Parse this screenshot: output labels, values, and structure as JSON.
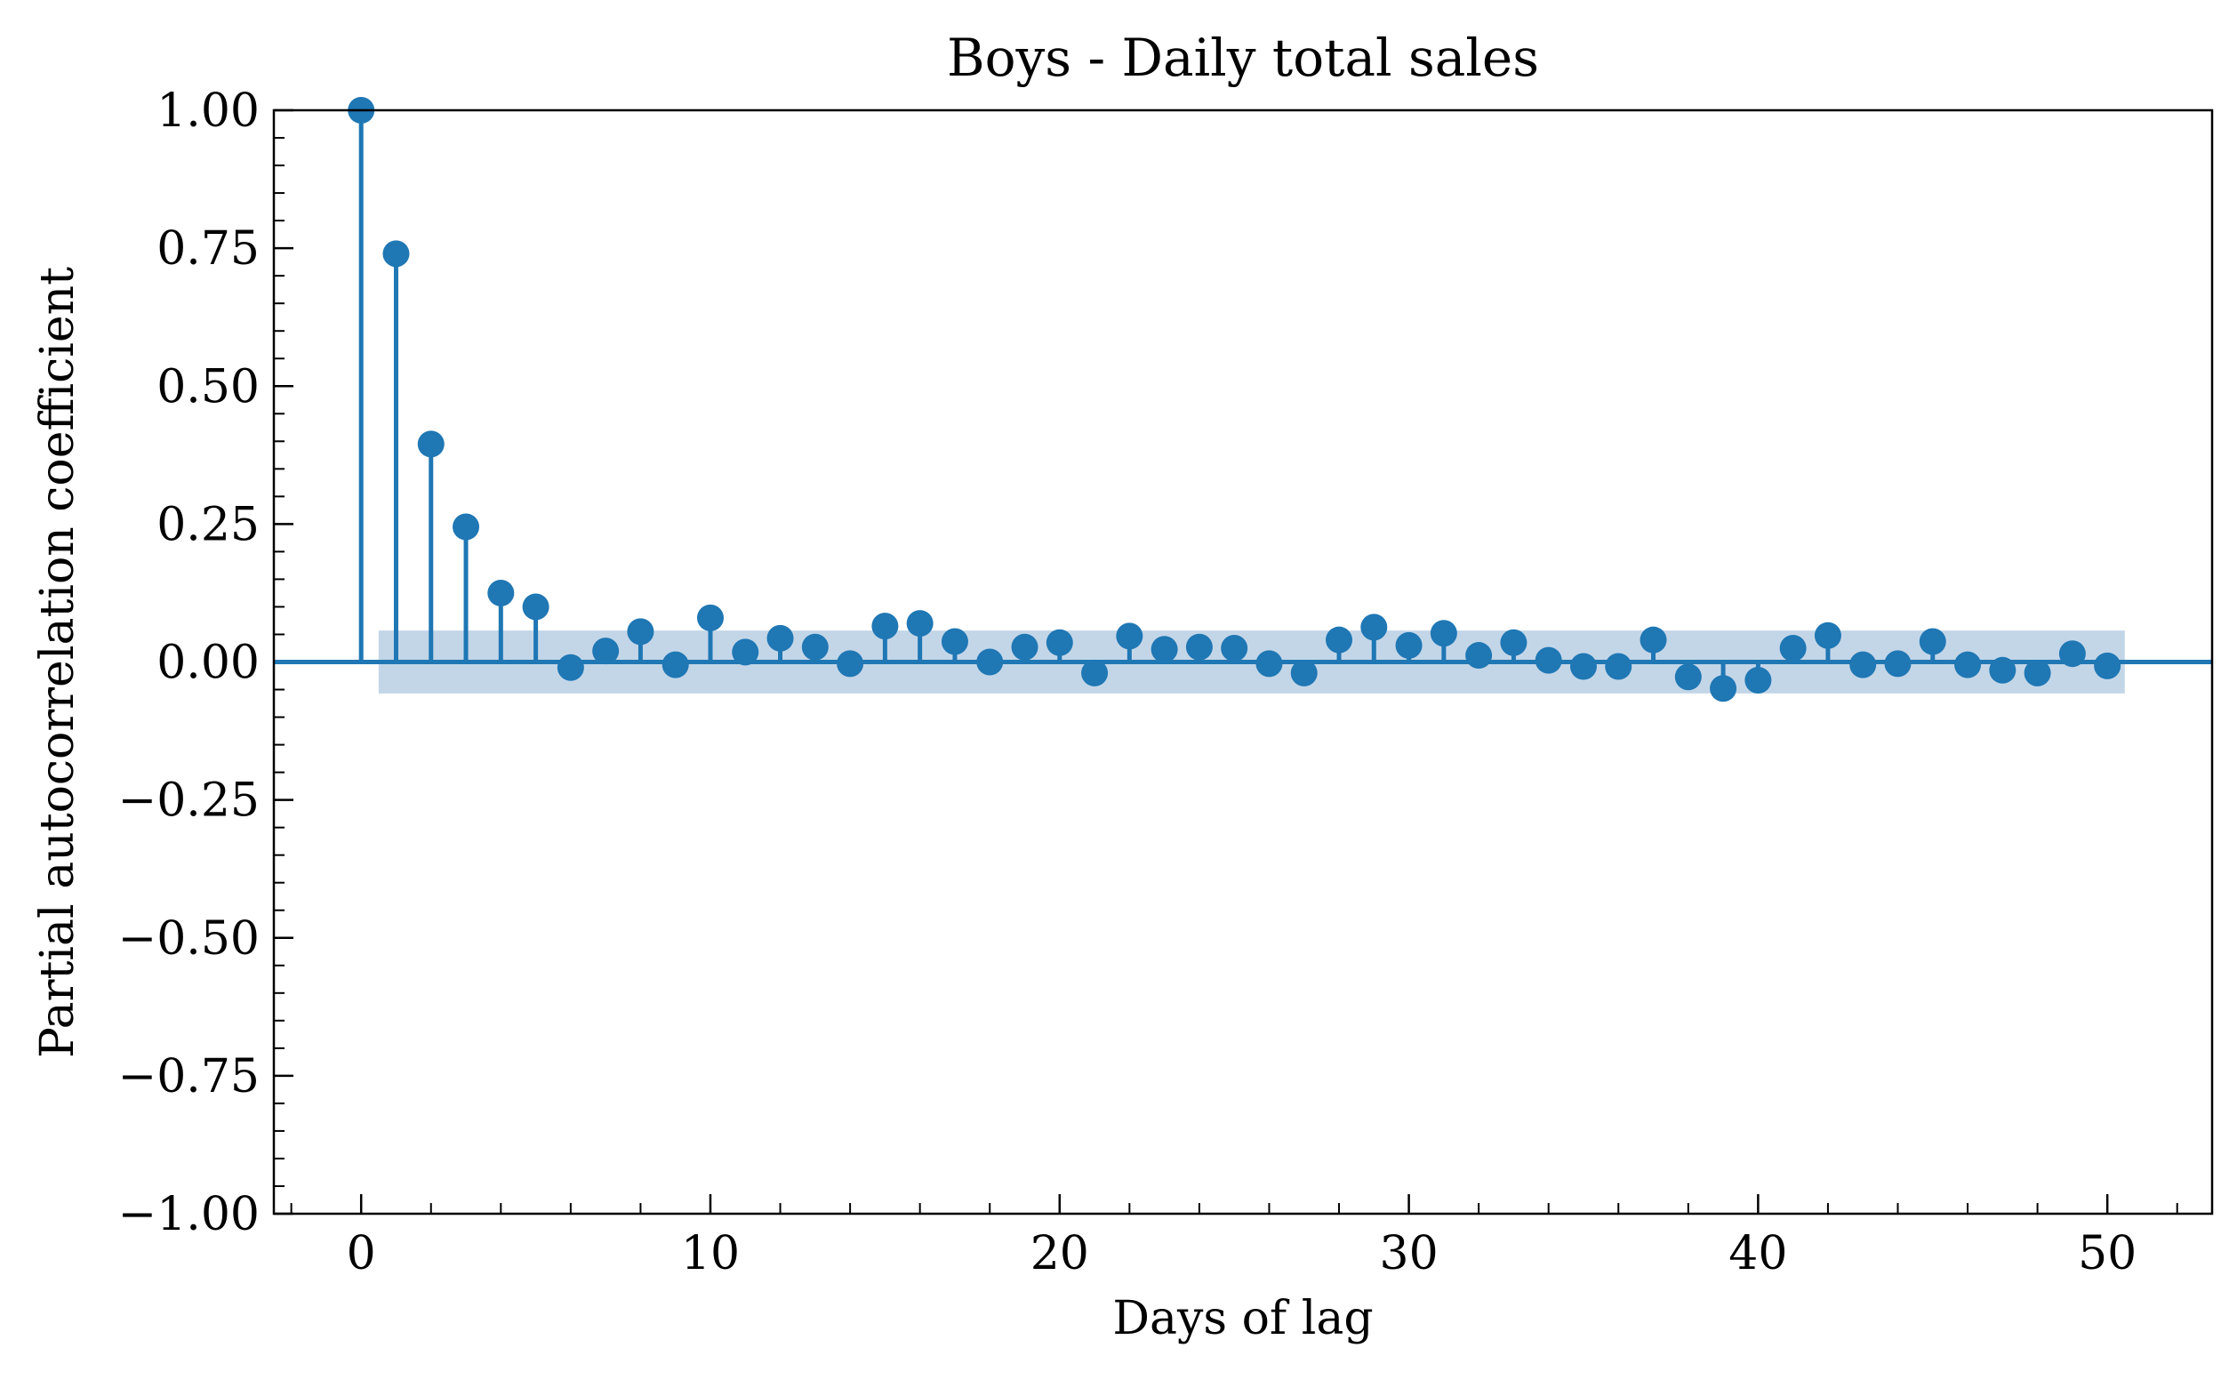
{
  "chart_data": {
    "type": "stem",
    "title": "Boys - Daily total sales",
    "xlabel": "Days of lag",
    "ylabel": "Partial autocorrelation coefficient",
    "xlim": [
      -2.5,
      53
    ],
    "ylim": [
      -1.0,
      1.0
    ],
    "x_ticks": [
      0,
      10,
      20,
      30,
      40,
      50
    ],
    "x_tick_labels": [
      "0",
      "10",
      "20",
      "30",
      "40",
      "50"
    ],
    "y_ticks": [
      1.0,
      0.75,
      0.5,
      0.25,
      0.0,
      -0.25,
      -0.5,
      -0.75,
      -1.0
    ],
    "y_tick_labels": [
      "1.00",
      "0.75",
      "0.50",
      "0.25",
      "0.00",
      "−0.25",
      "−0.50",
      "−0.75",
      "−1.00"
    ],
    "grid": false,
    "colors": {
      "stem": "#1f77b4",
      "confidence_band": "#c3d6e8"
    },
    "confidence_band": {
      "x_start": 0.5,
      "x_end": 50.5,
      "lower": -0.057,
      "upper": 0.057
    },
    "x": [
      0,
      1,
      2,
      3,
      4,
      5,
      6,
      7,
      8,
      9,
      10,
      11,
      12,
      13,
      14,
      15,
      16,
      17,
      18,
      19,
      20,
      21,
      22,
      23,
      24,
      25,
      26,
      27,
      28,
      29,
      30,
      31,
      32,
      33,
      34,
      35,
      36,
      37,
      38,
      39,
      40,
      41,
      42,
      43,
      44,
      45,
      46,
      47,
      48,
      49,
      50
    ],
    "values": [
      1.0,
      0.74,
      0.395,
      0.245,
      0.125,
      0.1,
      -0.01,
      0.02,
      0.055,
      -0.005,
      0.08,
      0.018,
      0.043,
      0.027,
      -0.003,
      0.065,
      0.07,
      0.037,
      0.0,
      0.027,
      0.035,
      -0.02,
      0.047,
      0.023,
      0.027,
      0.025,
      -0.003,
      -0.02,
      0.04,
      0.063,
      0.03,
      0.052,
      0.012,
      0.035,
      0.003,
      -0.008,
      -0.008,
      0.04,
      -0.027,
      -0.048,
      -0.033,
      0.025,
      0.048,
      -0.005,
      -0.003,
      0.037,
      -0.005,
      -0.015,
      -0.02,
      0.015,
      -0.007
    ]
  }
}
